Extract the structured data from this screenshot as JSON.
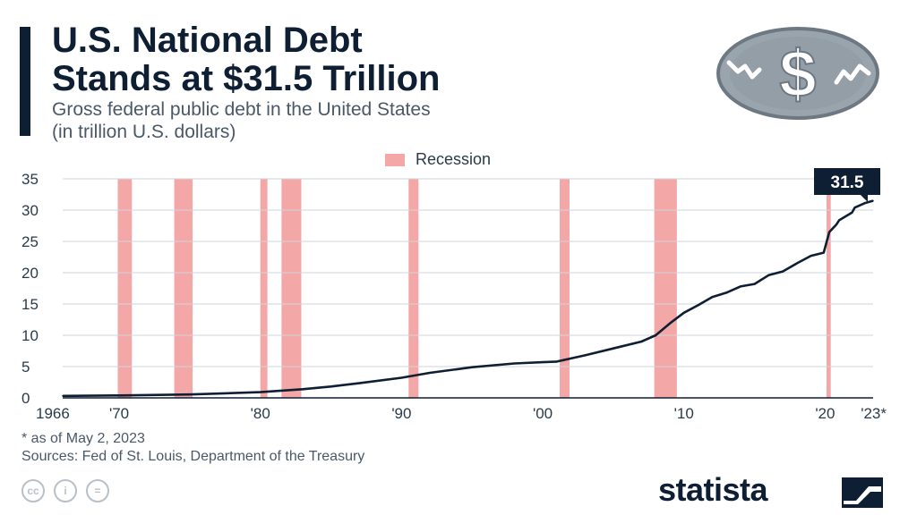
{
  "header": {
    "title_line1": "U.S. National Debt",
    "title_line2": "Stands at $31.5 Trillion",
    "subtitle_line1": "Gross federal public debt in the United States",
    "subtitle_line2": "(in trillion U.S. dollars)"
  },
  "icons": {
    "coin": "dollar-coin-icon",
    "cc": "creative-commons-icon",
    "by": "attribution-icon",
    "nd": "no-derivatives-icon",
    "brand_mark": "statista-logo-icon"
  },
  "cc_labels": [
    "cc",
    "i",
    "="
  ],
  "colors": {
    "line": "#0f1f33",
    "recession": "#f4a7a7",
    "grid": "#cfd4da",
    "title": "#0f1f33",
    "callout_bg": "#0f1f33",
    "callout_text": "#ffffff"
  },
  "chart_data": {
    "type": "line",
    "title": "U.S. National Debt Stands at $31.5 Trillion",
    "subtitle": "Gross federal public debt in the United States (in trillion U.S. dollars)",
    "ylim": [
      0,
      35
    ],
    "y_ticks": [
      0,
      5,
      10,
      15,
      20,
      25,
      30,
      35
    ],
    "xlim": [
      1966,
      2023.4
    ],
    "x_ticks": [
      {
        "value": 1966,
        "label": "1966"
      },
      {
        "value": 1970,
        "label": "'70"
      },
      {
        "value": 1980,
        "label": "'80"
      },
      {
        "value": 1990,
        "label": "'90"
      },
      {
        "value": 2000,
        "label": "'00"
      },
      {
        "value": 2010,
        "label": "'10"
      },
      {
        "value": 2020,
        "label": "'20"
      },
      {
        "value": 2023,
        "label": "'23*"
      }
    ],
    "grid": true,
    "legend": {
      "position": "top-center",
      "entries": [
        "Recession"
      ]
    },
    "recessions": [
      [
        1969.9,
        1970.9
      ],
      [
        1973.9,
        1975.2
      ],
      [
        1980.0,
        1980.5
      ],
      [
        1981.5,
        1982.9
      ],
      [
        1990.5,
        1991.2
      ],
      [
        2001.2,
        2001.9
      ],
      [
        2007.9,
        2009.5
      ],
      [
        2020.1,
        2020.4
      ]
    ],
    "series": [
      {
        "values": [
          {
            "x": 1966,
            "y": 0.32
          },
          {
            "x": 1970,
            "y": 0.38
          },
          {
            "x": 1975,
            "y": 0.54
          },
          {
            "x": 1980,
            "y": 0.91
          },
          {
            "x": 1983,
            "y": 1.38
          },
          {
            "x": 1985,
            "y": 1.82
          },
          {
            "x": 1987,
            "y": 2.35
          },
          {
            "x": 1990,
            "y": 3.21
          },
          {
            "x": 1992,
            "y": 4.0
          },
          {
            "x": 1995,
            "y": 4.9
          },
          {
            "x": 1998,
            "y": 5.5
          },
          {
            "x": 2000,
            "y": 5.7
          },
          {
            "x": 2001,
            "y": 5.8
          },
          {
            "x": 2003,
            "y": 6.8
          },
          {
            "x": 2005,
            "y": 7.9
          },
          {
            "x": 2007,
            "y": 9.0
          },
          {
            "x": 2008,
            "y": 10.0
          },
          {
            "x": 2009,
            "y": 11.9
          },
          {
            "x": 2010,
            "y": 13.6
          },
          {
            "x": 2011,
            "y": 14.8
          },
          {
            "x": 2012,
            "y": 16.1
          },
          {
            "x": 2013,
            "y": 16.8
          },
          {
            "x": 2014,
            "y": 17.8
          },
          {
            "x": 2015,
            "y": 18.2
          },
          {
            "x": 2016,
            "y": 19.6
          },
          {
            "x": 2017,
            "y": 20.2
          },
          {
            "x": 2018,
            "y": 21.5
          },
          {
            "x": 2019,
            "y": 22.7
          },
          {
            "x": 2019.9,
            "y": 23.2
          },
          {
            "x": 2020.3,
            "y": 26.5
          },
          {
            "x": 2020.8,
            "y": 27.7
          },
          {
            "x": 2021,
            "y": 28.4
          },
          {
            "x": 2021.9,
            "y": 29.6
          },
          {
            "x": 2022.1,
            "y": 30.4
          },
          {
            "x": 2022.8,
            "y": 31.1
          },
          {
            "x": 2023.4,
            "y": 31.5
          }
        ]
      }
    ],
    "callout": {
      "x": 2023.4,
      "y": 31.5,
      "label": "31.5"
    }
  },
  "footer": {
    "footnote": "* as of May 2, 2023",
    "sources": "Sources: Fed of St. Louis, Department of the Treasury",
    "brand": "statista"
  }
}
